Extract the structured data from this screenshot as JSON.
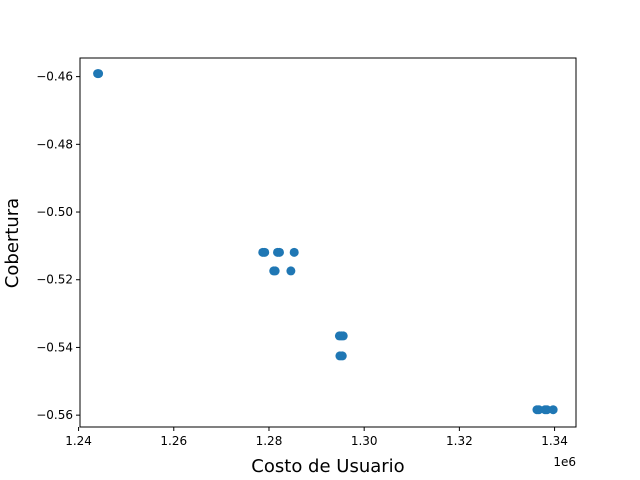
{
  "chart_data": {
    "type": "scatter",
    "xlabel": "Costo de Usuario",
    "ylabel": "Cobertura",
    "x_offset_label": "1e6",
    "xlim": [
      1.2403,
      1.3445
    ],
    "ylim": [
      -0.5635,
      -0.4545
    ],
    "x_ticks": [
      {
        "value": 1.24,
        "label": "1.24"
      },
      {
        "value": 1.26,
        "label": "1.26"
      },
      {
        "value": 1.28,
        "label": "1.28"
      },
      {
        "value": 1.3,
        "label": "1.30"
      },
      {
        "value": 1.32,
        "label": "1.32"
      },
      {
        "value": 1.34,
        "label": "1.34"
      }
    ],
    "y_ticks": [
      {
        "value": -0.46,
        "label": "−0.46"
      },
      {
        "value": -0.48,
        "label": "−0.48"
      },
      {
        "value": -0.5,
        "label": "−0.50"
      },
      {
        "value": -0.52,
        "label": "−0.52"
      },
      {
        "value": -0.54,
        "label": "−0.54"
      },
      {
        "value": -0.56,
        "label": "−0.56"
      }
    ],
    "marker_color": "#1f77b4",
    "grid": false,
    "points": [
      {
        "x": 1.244,
        "y": -0.4591
      },
      {
        "x": 1.2442,
        "y": -0.4591
      },
      {
        "x": 1.2787,
        "y": -0.5119
      },
      {
        "x": 1.2791,
        "y": -0.5119
      },
      {
        "x": 1.2818,
        "y": -0.5119
      },
      {
        "x": 1.2822,
        "y": -0.5119
      },
      {
        "x": 1.2853,
        "y": -0.5119
      },
      {
        "x": 1.281,
        "y": -0.5174
      },
      {
        "x": 1.2813,
        "y": -0.5174
      },
      {
        "x": 1.2846,
        "y": -0.5174
      },
      {
        "x": 1.2948,
        "y": -0.5366
      },
      {
        "x": 1.2952,
        "y": -0.5366
      },
      {
        "x": 1.2956,
        "y": -0.5366
      },
      {
        "x": 1.2949,
        "y": -0.5425
      },
      {
        "x": 1.2954,
        "y": -0.5425
      },
      {
        "x": 1.3363,
        "y": -0.5584
      },
      {
        "x": 1.3367,
        "y": -0.5584
      },
      {
        "x": 1.338,
        "y": -0.5584
      },
      {
        "x": 1.3384,
        "y": -0.5584
      },
      {
        "x": 1.3397,
        "y": -0.5584
      }
    ]
  }
}
